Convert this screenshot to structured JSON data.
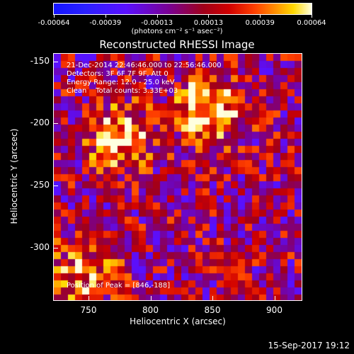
{
  "colorbar": {
    "tick_labels": [
      "-0.00064",
      "-0.00039",
      "-0.00013",
      "0.00013",
      "0.00039",
      "0.00064"
    ],
    "unit_label": "(photons cm⁻² s⁻¹ asec⁻²)",
    "min": -0.00064,
    "max": 0.00064
  },
  "title": "Reconstructed RHESSI Image",
  "annotations": {
    "time_range": "21-Dec-2014 22:46:46.000 to 22:56:46.000",
    "detectors": "Detectors: 3F 6F 7F 9F, Att 0",
    "energy_range": "Energy Range: 12.0 - 25.0 keV",
    "clean_counts": "Clean    Total counts: 3.33E+03",
    "peak_position": "Position of Peak = [846,-188]"
  },
  "axes": {
    "x_label": "Heliocentric X (arcsec)",
    "y_label": "Heliocentric Y (arcsec)",
    "x_ticks": [
      "750",
      "800",
      "850",
      "900"
    ],
    "y_ticks": [
      "-150",
      "-200",
      "-250",
      "-300"
    ],
    "x_range": [
      722,
      922
    ],
    "y_range": [
      -342,
      -144
    ]
  },
  "timestamp": "15-Sep-2017 19:12",
  "chart_data": {
    "type": "heatmap",
    "title": "Reconstructed RHESSI Image",
    "xlabel": "Heliocentric X (arcsec)",
    "ylabel": "Heliocentric Y (arcsec)",
    "xlim": [
      722,
      922
    ],
    "ylim": [
      -342,
      -144
    ],
    "color_range": [
      -0.00064,
      0.00064
    ],
    "sources": [
      {
        "x": 846,
        "y": -188,
        "peak": 0.00064
      },
      {
        "x": 775,
        "y": -212,
        "peak": 0.00055
      },
      {
        "x": 745,
        "y": -320,
        "peak": 0.0004
      }
    ]
  },
  "colors": {
    "background": "#000000",
    "foreground": "#ffffff"
  }
}
